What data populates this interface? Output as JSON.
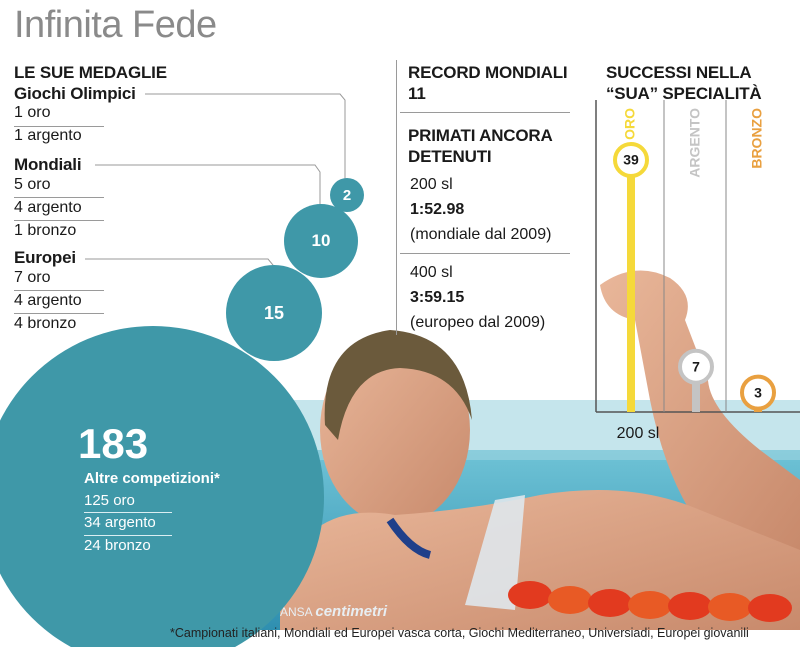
{
  "title": "Infinita Fede",
  "medals": {
    "heading": "LE SUE MEDAGLIE",
    "groups": [
      {
        "name": "Giochi Olimpici",
        "items": [
          "1 oro",
          "1 argento"
        ],
        "total": "2"
      },
      {
        "name": "Mondiali",
        "items": [
          "5 oro",
          "4 argento",
          "1 bronzo"
        ],
        "total": "10"
      },
      {
        "name": "Europei",
        "items": [
          "7 oro",
          "4 argento",
          "4 bronzo"
        ],
        "total": "15"
      }
    ],
    "other": {
      "total": "183",
      "label": "Altre competizioni*",
      "items": [
        "125 oro",
        "34 argento",
        "24 bronzo"
      ]
    }
  },
  "records": {
    "heading": "RECORD MONDIALI",
    "count": "11",
    "primati_heading_1": "PRIMATI ANCORA",
    "primati_heading_2": "DETENUTI",
    "entries": [
      {
        "event": "200 sl",
        "time": "1:52.98",
        "note": "(mondiale dal 2009)"
      },
      {
        "event": "400 sl",
        "time": "3:59.15",
        "note": "(europeo dal 2009)"
      }
    ]
  },
  "successi": {
    "heading_1": "SUCCESSI NELLA",
    "heading_2": "“SUA” SPECIALITÀ"
  },
  "chart_data": {
    "type": "bar",
    "title": "SUCCESSI NELLA “SUA” SPECIALITÀ",
    "xlabel": "200 sl",
    "categories": [
      "ORO",
      "ARGENTO",
      "BRONZO"
    ],
    "values": [
      39,
      7,
      3
    ],
    "colors": [
      "#f5d93a",
      "#c4c4c4",
      "#e9a040"
    ],
    "grid": false
  },
  "credit": {
    "ansa": "ANSA",
    "brand": "centimetri"
  },
  "footnote": "*Campionati italiani, Mondiali ed Europei vasca corta, Giochi Mediterraneo, Universiadi, Europei giovanili",
  "colors": {
    "bubble": "#3f98a8",
    "title": "#8a8a8a",
    "gold": "#f5d93a",
    "silver": "#c4c4c4",
    "bronze": "#e9a040"
  }
}
